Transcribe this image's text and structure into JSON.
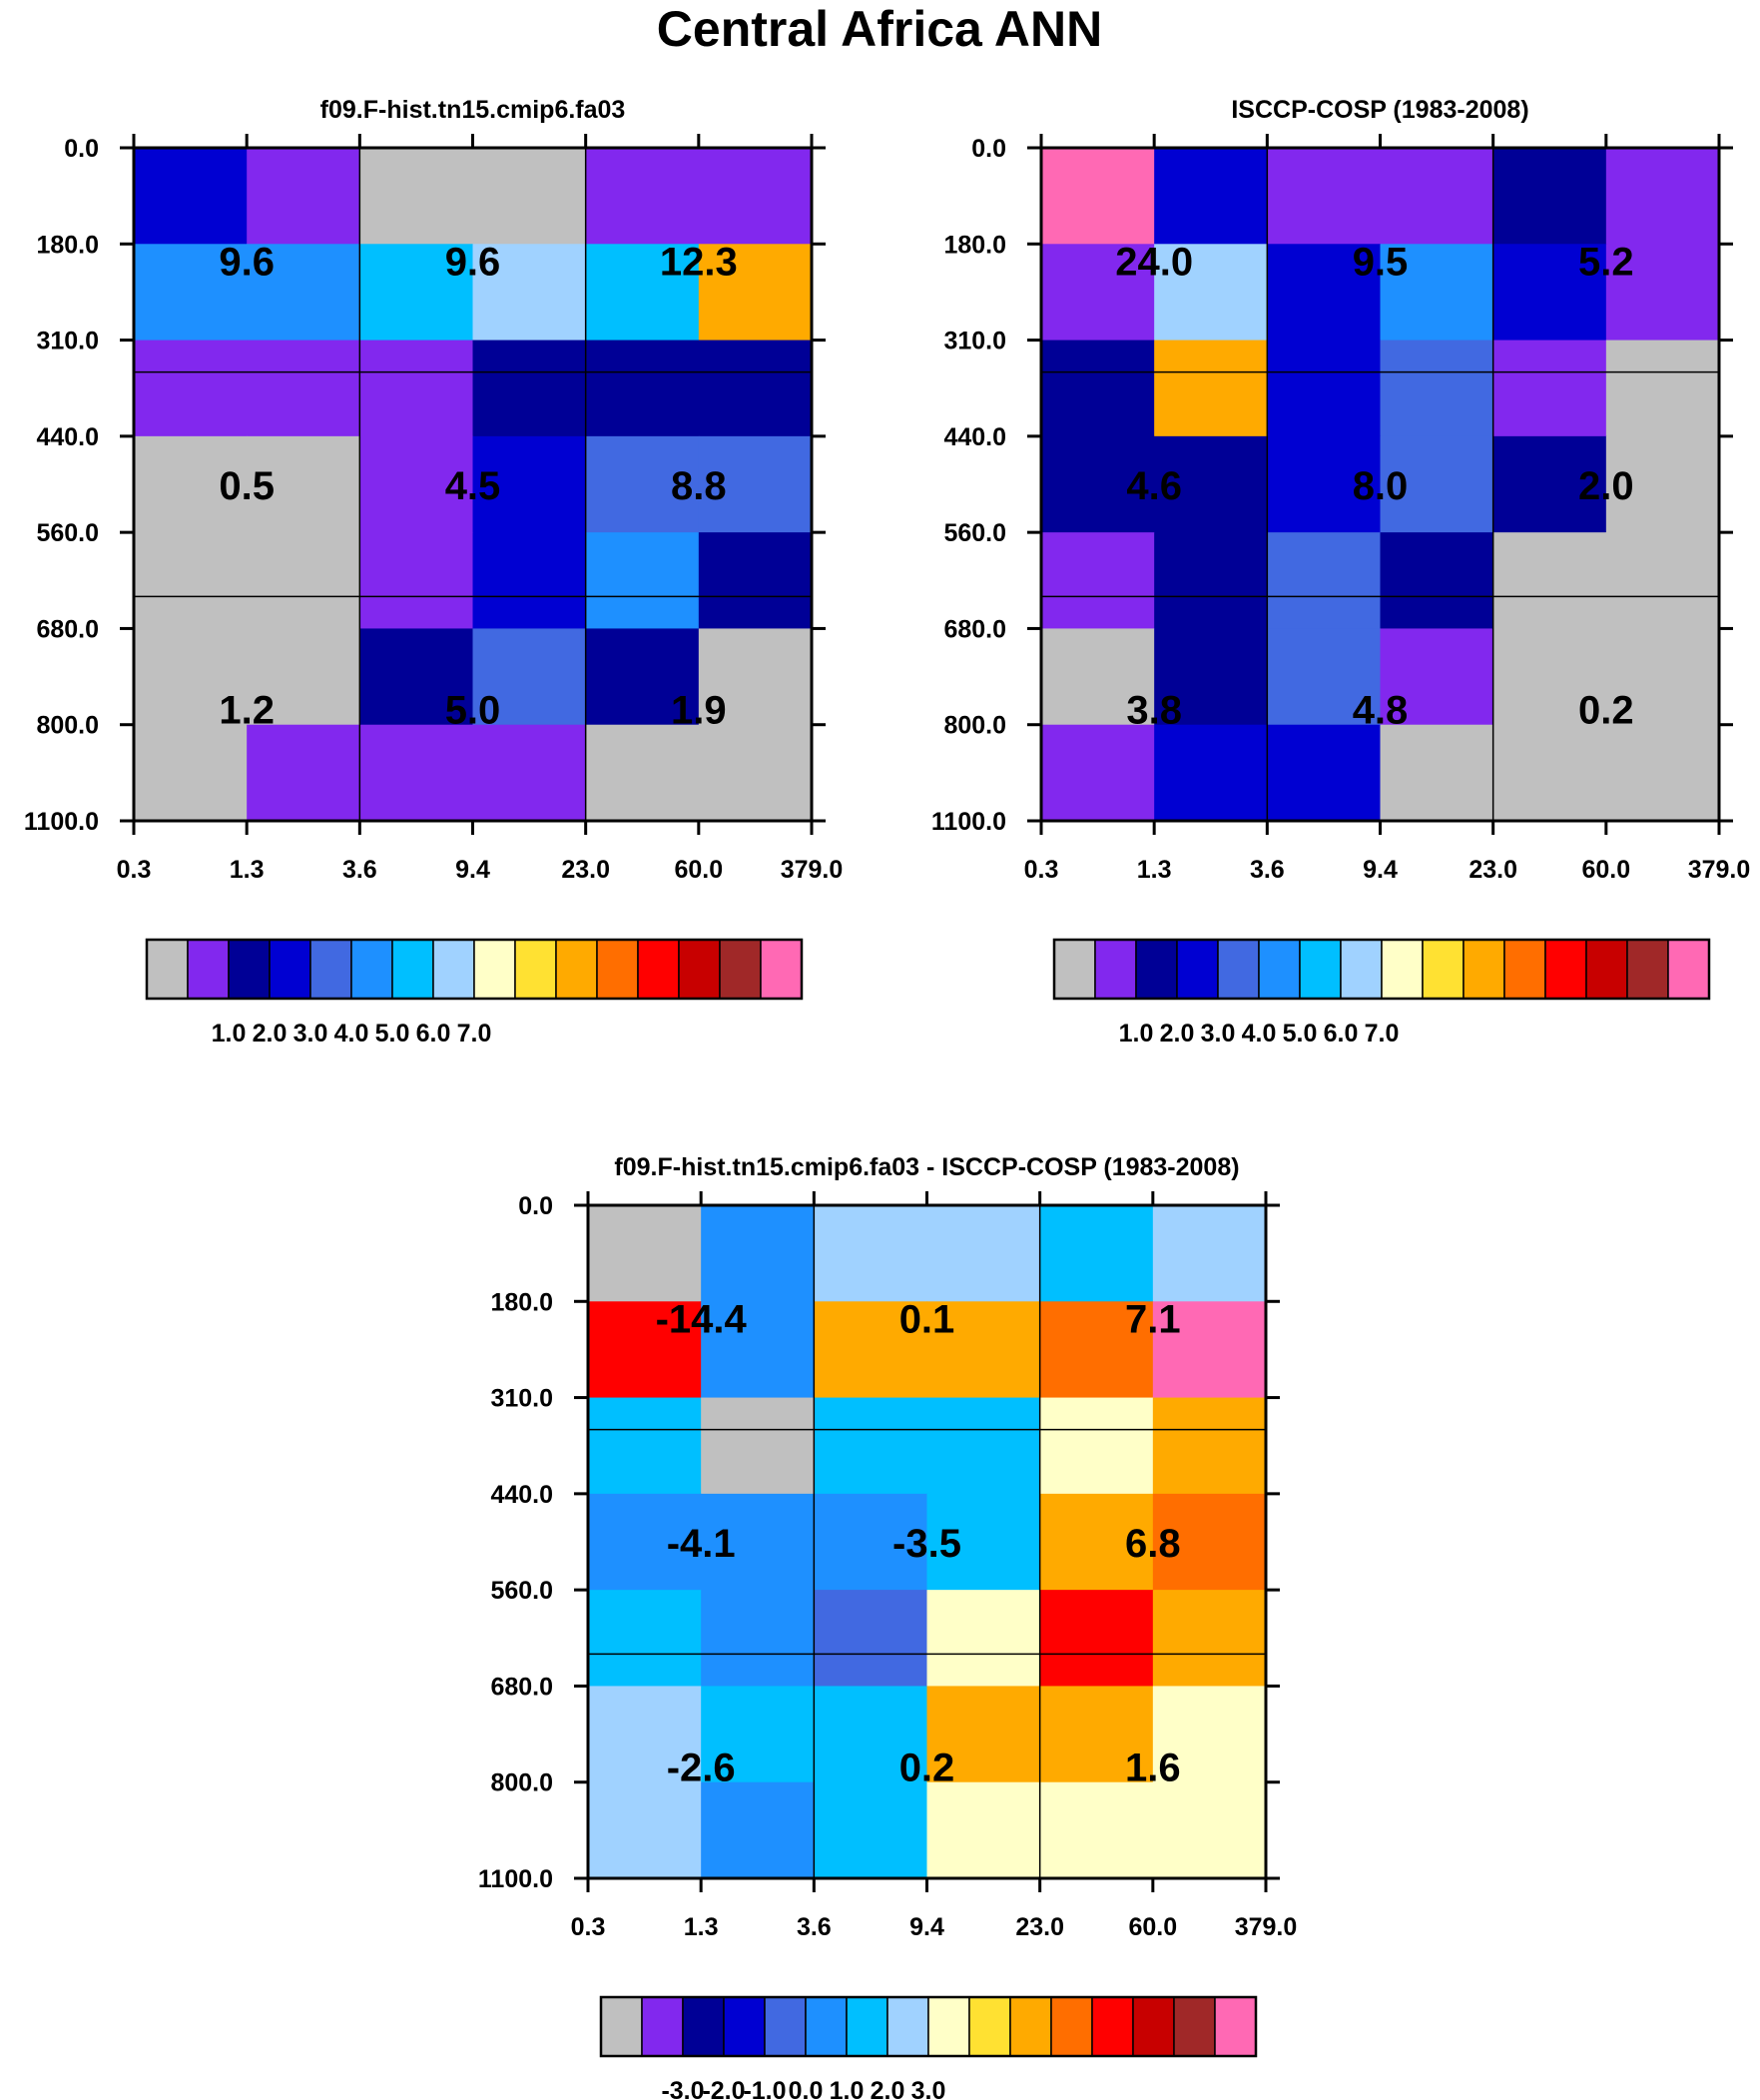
{
  "title": "Central Africa ANN",
  "palette": [
    "#c0c0c0",
    "#8228ee",
    "#000096",
    "#0000d2",
    "#4169e1",
    "#1e90ff",
    "#00bfff",
    "#a0d2ff",
    "#ffffc8",
    "#ffe132",
    "#ffaa00",
    "#ff6e00",
    "#ff0000",
    "#c80000",
    "#a02828",
    "#ff69b4"
  ],
  "chart_data": [
    {
      "type": "heatmap",
      "title": "f09.F-hist.tn15.cmip6.fa03",
      "x_ticks": [
        "0.3",
        "1.3",
        "3.6",
        "9.4",
        "23.0",
        "60.0",
        "379.0"
      ],
      "y_ticks": [
        "0.0",
        "180.0",
        "310.0",
        "440.0",
        "560.0",
        "680.0",
        "800.0",
        "1100.0"
      ],
      "cells": [
        [
          3,
          1,
          0,
          0,
          1,
          1
        ],
        [
          5,
          5,
          6,
          7,
          6,
          10
        ],
        [
          1,
          1,
          1,
          2,
          2,
          2
        ],
        [
          0,
          0,
          1,
          3,
          4,
          4
        ],
        [
          0,
          0,
          1,
          3,
          5,
          2
        ],
        [
          0,
          0,
          2,
          4,
          2,
          0
        ],
        [
          0,
          1,
          1,
          1,
          0,
          0
        ]
      ],
      "box_values": [
        [
          "9.6",
          "9.6",
          "12.3"
        ],
        [
          "0.5",
          "4.5",
          "8.8"
        ],
        [
          "1.2",
          "5.0",
          "1.9"
        ]
      ],
      "colorbar_labels": [
        "1.0",
        "2.0",
        "3.0",
        "4.0",
        "5.0",
        "6.0",
        "7.0"
      ]
    },
    {
      "type": "heatmap",
      "title": "ISCCP-COSP (1983-2008)",
      "x_ticks": [
        "0.3",
        "1.3",
        "3.6",
        "9.4",
        "23.0",
        "60.0",
        "379.0"
      ],
      "y_ticks": [
        "0.0",
        "180.0",
        "310.0",
        "440.0",
        "560.0",
        "680.0",
        "800.0",
        "1100.0"
      ],
      "cells": [
        [
          15,
          3,
          1,
          1,
          2,
          1
        ],
        [
          1,
          7,
          3,
          5,
          3,
          1
        ],
        [
          2,
          10,
          3,
          4,
          1,
          0
        ],
        [
          2,
          2,
          3,
          4,
          2,
          0
        ],
        [
          1,
          2,
          4,
          2,
          0,
          0
        ],
        [
          0,
          2,
          4,
          1,
          0,
          0
        ],
        [
          1,
          3,
          3,
          0,
          0,
          0
        ]
      ],
      "box_values": [
        [
          "24.0",
          "9.5",
          "5.2"
        ],
        [
          "4.6",
          "8.0",
          "2.0"
        ],
        [
          "3.8",
          "4.8",
          "0.2"
        ]
      ],
      "colorbar_labels": [
        "1.0",
        "2.0",
        "3.0",
        "4.0",
        "5.0",
        "6.0",
        "7.0"
      ]
    },
    {
      "type": "heatmap",
      "title": "f09.F-hist.tn15.cmip6.fa03 - ISCCP-COSP (1983-2008)",
      "x_ticks": [
        "0.3",
        "1.3",
        "3.6",
        "9.4",
        "23.0",
        "60.0",
        "379.0"
      ],
      "y_ticks": [
        "0.0",
        "180.0",
        "310.0",
        "440.0",
        "560.0",
        "680.0",
        "800.0",
        "1100.0"
      ],
      "cells": [
        [
          0,
          5,
          7,
          7,
          6,
          7
        ],
        [
          12,
          5,
          10,
          10,
          11,
          15
        ],
        [
          6,
          0,
          6,
          6,
          8,
          10
        ],
        [
          5,
          5,
          5,
          6,
          10,
          11
        ],
        [
          6,
          5,
          4,
          8,
          12,
          10
        ],
        [
          7,
          6,
          6,
          10,
          10,
          8
        ],
        [
          7,
          5,
          6,
          8,
          8,
          8
        ]
      ],
      "box_values": [
        [
          "-14.4",
          "0.1",
          "7.1"
        ],
        [
          "-4.1",
          "-3.5",
          "6.8"
        ],
        [
          "-2.6",
          "0.2",
          "1.6"
        ]
      ],
      "colorbar_labels": [
        "-3.0",
        "-2.0",
        "-1.0",
        "0.0",
        "1.0",
        "2.0",
        "3.0"
      ]
    }
  ]
}
